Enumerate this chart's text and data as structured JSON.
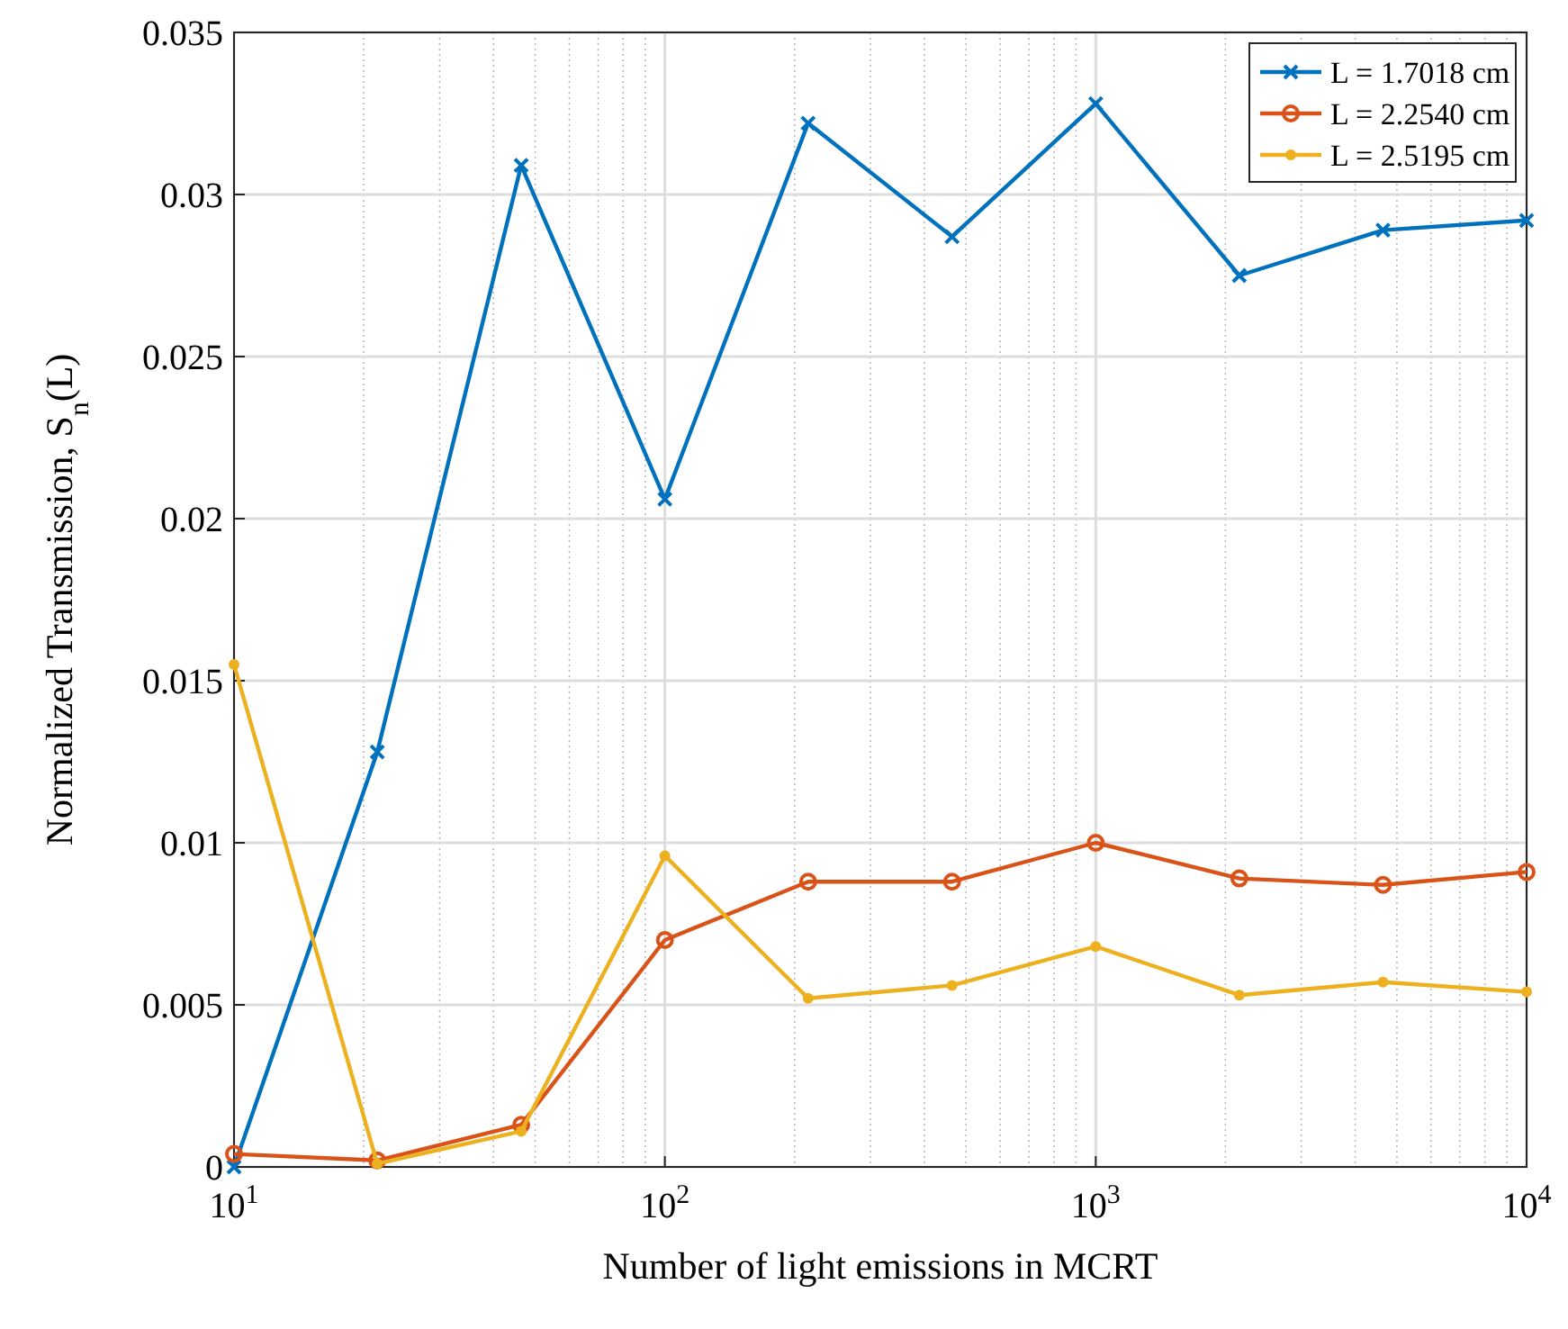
{
  "chart_data": {
    "type": "line",
    "xlabel": "Number of light emissions in MCRT",
    "ylabel": "Normalized Transmission, S$_{n}$(L)",
    "log": "x",
    "grid": true,
    "legend": "top right",
    "line_style": "solid",
    "x": [
      10,
      21.5,
      46.4,
      100,
      215,
      464,
      1000,
      2154,
      4642,
      10000
    ],
    "xlim": [
      10,
      10000
    ],
    "xticks": [
      {
        "value": 10,
        "label": "10$^{1}$"
      },
      {
        "value": 100,
        "label": "10$^{2}$"
      },
      {
        "value": 1000,
        "label": "10$^{3}$"
      },
      {
        "value": 10000,
        "label": "10$^{4}$"
      }
    ],
    "ylim": [
      0,
      0.035
    ],
    "yticks": [
      0,
      0.005,
      0.01,
      0.015,
      0.02,
      0.025,
      0.03,
      0.035
    ],
    "series": [
      {
        "name": "L = 1.7018 cm",
        "color": "#0072bd",
        "marker": "cross",
        "values": [
          0,
          0.0128,
          0.0309,
          0.0206,
          0.0322,
          0.0287,
          0.0328,
          0.0275,
          0.0289,
          0.0292
        ]
      },
      {
        "name": "L = 2.2540 cm",
        "color": "#d95319",
        "marker": "circle",
        "values": [
          0.0004,
          0.0002,
          0.0013,
          0.007,
          0.0088,
          0.0088,
          0.01,
          0.0089,
          0.0087,
          0.0091
        ]
      },
      {
        "name": "L = 2.5195 cm",
        "color": "#edb120",
        "marker": "dot",
        "values": [
          0.0155,
          0.0001,
          0.0011,
          0.0096,
          0.0052,
          0.0056,
          0.0068,
          0.0053,
          0.0057,
          0.0054
        ]
      }
    ]
  }
}
